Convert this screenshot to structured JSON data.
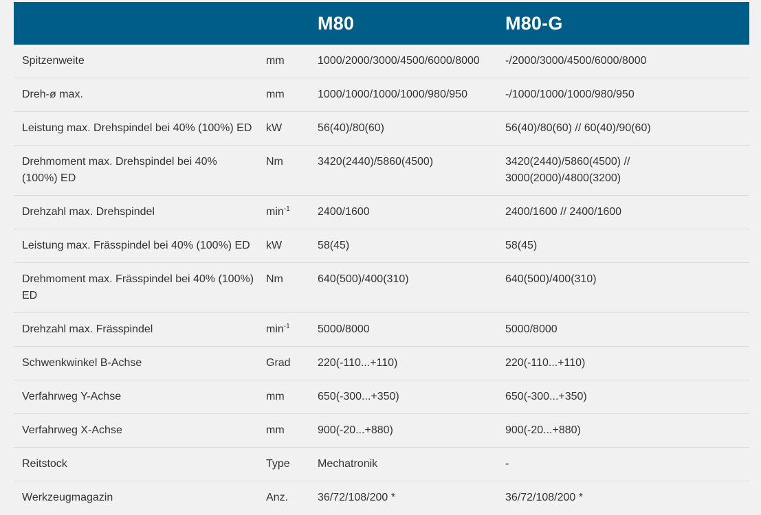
{
  "header": {
    "blank_label": "",
    "blank_unit": "",
    "model_1": "M80",
    "model_2": "M80-G"
  },
  "rows": [
    {
      "label": "Spitzenweite",
      "unit": "mm",
      "unit_sup": "",
      "m80": "1000/2000/3000/4500/6000/8000",
      "m80g": "-/2000/3000/4500/6000/8000"
    },
    {
      "label": "Dreh-ø max.",
      "unit": "mm",
      "unit_sup": "",
      "m80": "1000/1000/1000/1000/980/950",
      "m80g": "-/1000/1000/1000/980/950"
    },
    {
      "label": "Leistung max. Drehspindel bei 40% (100%) ED",
      "unit": "kW",
      "unit_sup": "",
      "m80": "56(40)/80(60)",
      "m80g": "56(40)/80(60) // 60(40)/90(60)"
    },
    {
      "label": "Drehmoment max. Drehspindel bei 40% (100%) ED",
      "unit": "Nm",
      "unit_sup": "",
      "m80": "3420(2440)/5860(4500)",
      "m80g": "3420(2440)/5860(4500) // 3000(2000)/4800(3200)"
    },
    {
      "label": "Drehzahl max. Drehspindel",
      "unit": "min",
      "unit_sup": "-1",
      "m80": "2400/1600",
      "m80g": "2400/1600 // 2400/1600"
    },
    {
      "label": "Leistung max. Frässpindel bei 40% (100%) ED",
      "unit": "kW",
      "unit_sup": "",
      "m80": "58(45)",
      "m80g": "58(45)"
    },
    {
      "label": "Drehmoment max. Frässpindel bei 40% (100%) ED",
      "unit": "Nm",
      "unit_sup": "",
      "m80": "640(500)/400(310)",
      "m80g": "640(500)/400(310)"
    },
    {
      "label": "Drehzahl max. Frässpindel",
      "unit": "min",
      "unit_sup": "-1",
      "m80": "5000/8000",
      "m80g": "5000/8000"
    },
    {
      "label": "Schwenkwinkel B-Achse",
      "unit": "Grad",
      "unit_sup": "",
      "m80": "220(-110...+110)",
      "m80g": "220(-110...+110)"
    },
    {
      "label": "Verfahrweg Y-Achse",
      "unit": "mm",
      "unit_sup": "",
      "m80": "650(-300...+350)",
      "m80g": "650(-300...+350)"
    },
    {
      "label": "Verfahrweg X-Achse",
      "unit": "mm",
      "unit_sup": "",
      "m80": "900(-20...+880)",
      "m80g": "900(-20...+880)"
    },
    {
      "label": "Reitstock",
      "unit": "Type",
      "unit_sup": "",
      "m80": "Mechatronik",
      "m80g": "-"
    },
    {
      "label": "Werkzeugmagazin",
      "unit": "Anz.",
      "unit_sup": "",
      "m80": "36/72/108/200 *",
      "m80g": "36/72/108/200 *"
    }
  ],
  "colors": {
    "header_bg": "#005d87",
    "page_bg": "#f1f1f1",
    "row_divider": "#dcdcdc",
    "text": "#333333"
  }
}
